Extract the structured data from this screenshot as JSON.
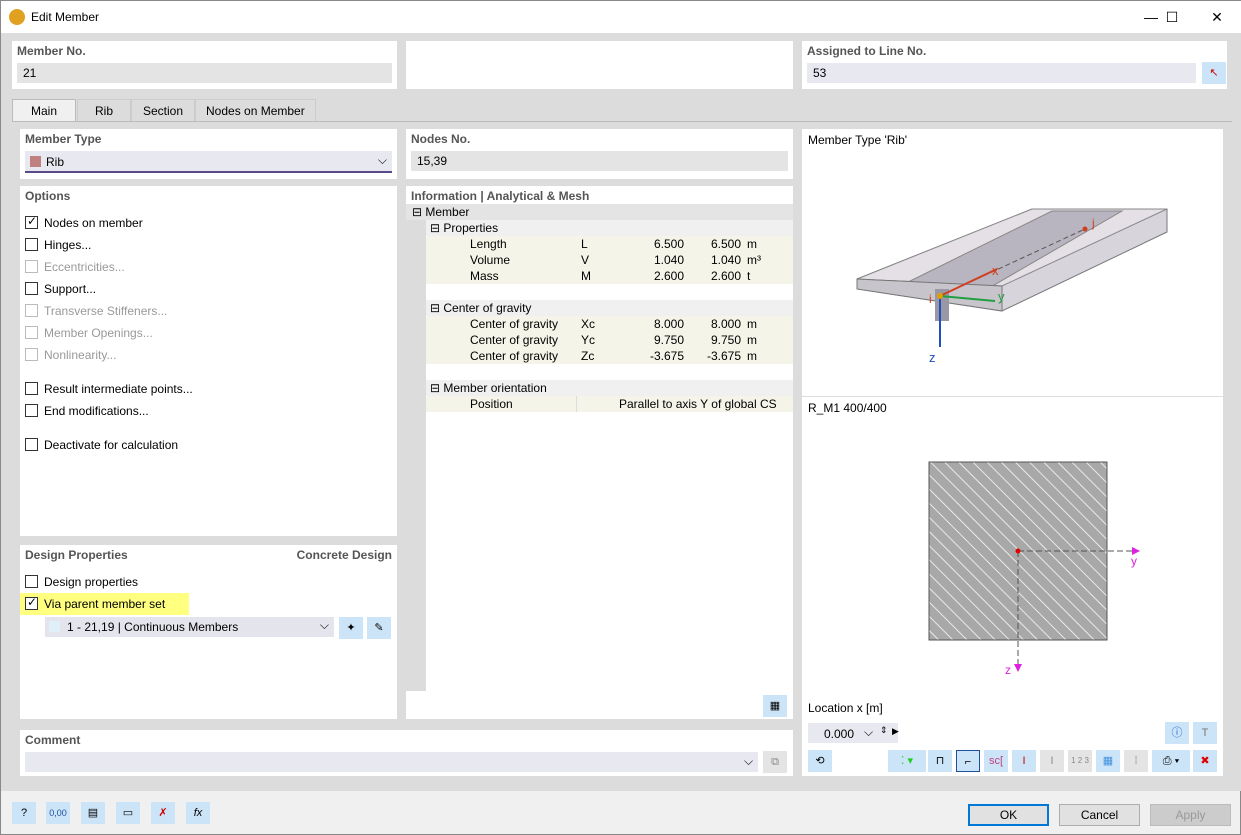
{
  "window": {
    "title": "Edit Member",
    "minimize": "—",
    "maximize": "☐",
    "close": "✕"
  },
  "member_no": {
    "label": "Member No.",
    "value": "21"
  },
  "assigned": {
    "label": "Assigned to Line No.",
    "value": "53"
  },
  "tabs": [
    "Main",
    "Rib",
    "Section",
    "Nodes on Member"
  ],
  "member_type": {
    "label": "Member Type",
    "value": "Rib",
    "color": "#c08080"
  },
  "options": {
    "label": "Options",
    "items": [
      {
        "label": "Nodes on member",
        "checked": true,
        "enabled": true
      },
      {
        "label": "Hinges...",
        "checked": false,
        "enabled": true
      },
      {
        "label": "Eccentricities...",
        "checked": false,
        "enabled": false
      },
      {
        "label": "Support...",
        "checked": false,
        "enabled": true
      },
      {
        "label": "Transverse Stiffeners...",
        "checked": false,
        "enabled": false
      },
      {
        "label": "Member Openings...",
        "checked": false,
        "enabled": false
      },
      {
        "label": "Nonlinearity...",
        "checked": false,
        "enabled": false
      },
      {
        "label": "Result intermediate points...",
        "checked": false,
        "enabled": true
      },
      {
        "label": "End modifications...",
        "checked": false,
        "enabled": true
      },
      {
        "label": "Deactivate for calculation",
        "checked": false,
        "enabled": true
      }
    ]
  },
  "design": {
    "label": "Design Properties",
    "right_label": "Concrete Design",
    "design_properties": "Design properties",
    "via_parent": "Via parent member set",
    "set_value": "1 - 21,19 | Continuous Members"
  },
  "nodes": {
    "label": "Nodes No.",
    "value": "15,39"
  },
  "info": {
    "label": "Information | Analytical & Mesh",
    "root": "Member",
    "groups": [
      {
        "name": "Properties",
        "rows": [
          [
            "Length",
            "L",
            "6.500",
            "6.500",
            "m"
          ],
          [
            "Volume",
            "V",
            "1.040",
            "1.040",
            "m³"
          ],
          [
            "Mass",
            "M",
            "2.600",
            "2.600",
            "t"
          ]
        ]
      },
      {
        "name": "Center of gravity",
        "rows": [
          [
            "Center of gravity",
            "Xc",
            "8.000",
            "8.000",
            "m"
          ],
          [
            "Center of gravity",
            "Yc",
            "9.750",
            "9.750",
            "m"
          ],
          [
            "Center of gravity",
            "Zc",
            "-3.675",
            "-3.675",
            "m"
          ]
        ]
      },
      {
        "name": "Member orientation",
        "rows": [
          [
            "Position",
            "",
            "Parallel to axis Y of global CS",
            "",
            ""
          ]
        ]
      }
    ]
  },
  "preview": {
    "title": "Member Type 'Rib'",
    "section": "R_M1 400/400",
    "axis_x": "x",
    "axis_y": "y",
    "axis_z": "z",
    "node_i": "i",
    "node_j": "j",
    "location_label": "Location x [m]",
    "location_value": "0.000"
  },
  "comment": {
    "label": "Comment",
    "value": ""
  },
  "buttons": {
    "ok": "OK",
    "cancel": "Cancel",
    "apply": "Apply"
  },
  "bottom_icons": [
    "help-icon",
    "units-icon",
    "display-icon",
    "view-icon",
    "delete-icon",
    "formula-icon"
  ],
  "bottom_units_text": "0,00"
}
